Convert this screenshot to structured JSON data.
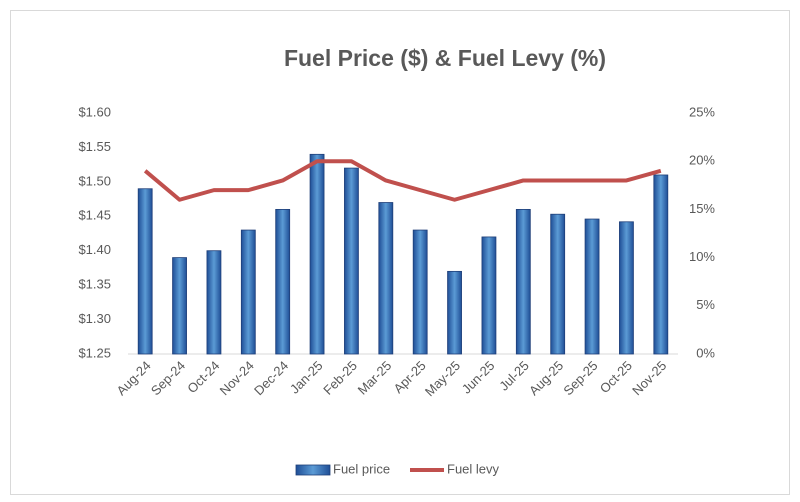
{
  "chart_data": {
    "type": "combo",
    "title": "Fuel Price ($) & Fuel Levy (%)",
    "categories": [
      "Aug-24",
      "Sep-24",
      "Oct-24",
      "Nov-24",
      "Dec-24",
      "Jan-25",
      "Feb-25",
      "Mar-25",
      "Apr-25",
      "May-25",
      "Jun-25",
      "Jul-25",
      "Aug-25",
      "Sep-25",
      "Oct-25",
      "Nov-25"
    ],
    "series": [
      {
        "name": "Fuel price",
        "type": "bar",
        "color": "#2e6bc0",
        "values": [
          1.49,
          1.39,
          1.4,
          1.43,
          1.46,
          1.54,
          1.52,
          1.47,
          1.43,
          1.37,
          1.42,
          1.46,
          1.453,
          1.446,
          1.442,
          1.51
        ]
      },
      {
        "name": "Fuel levy",
        "type": "line",
        "axis": "y2",
        "color": "#c0504d",
        "values": [
          19,
          16,
          17,
          17,
          18,
          20,
          20,
          18,
          17,
          16,
          17,
          18,
          18,
          18,
          18,
          19
        ]
      }
    ],
    "ylim": [
      1.25,
      1.6
    ],
    "yticks": [
      {
        "value": 1.25,
        "label": "$1.25"
      },
      {
        "value": 1.3,
        "label": "$1.30"
      },
      {
        "value": 1.35,
        "label": "$1.35"
      },
      {
        "value": 1.4,
        "label": "$1.40"
      },
      {
        "value": 1.45,
        "label": "$1.45"
      },
      {
        "value": 1.5,
        "label": "$1.50"
      },
      {
        "value": 1.55,
        "label": "$1.55"
      },
      {
        "value": 1.6,
        "label": "$1.60"
      }
    ],
    "y2lim": [
      0,
      25
    ],
    "y2ticks": [
      {
        "value": 0,
        "label": "0%"
      },
      {
        "value": 5,
        "label": "5%"
      },
      {
        "value": 10,
        "label": "10%"
      },
      {
        "value": 15,
        "label": "15%"
      },
      {
        "value": 20,
        "label": "20%"
      },
      {
        "value": 25,
        "label": "25%"
      }
    ],
    "grid": false,
    "legend": "bottom"
  }
}
